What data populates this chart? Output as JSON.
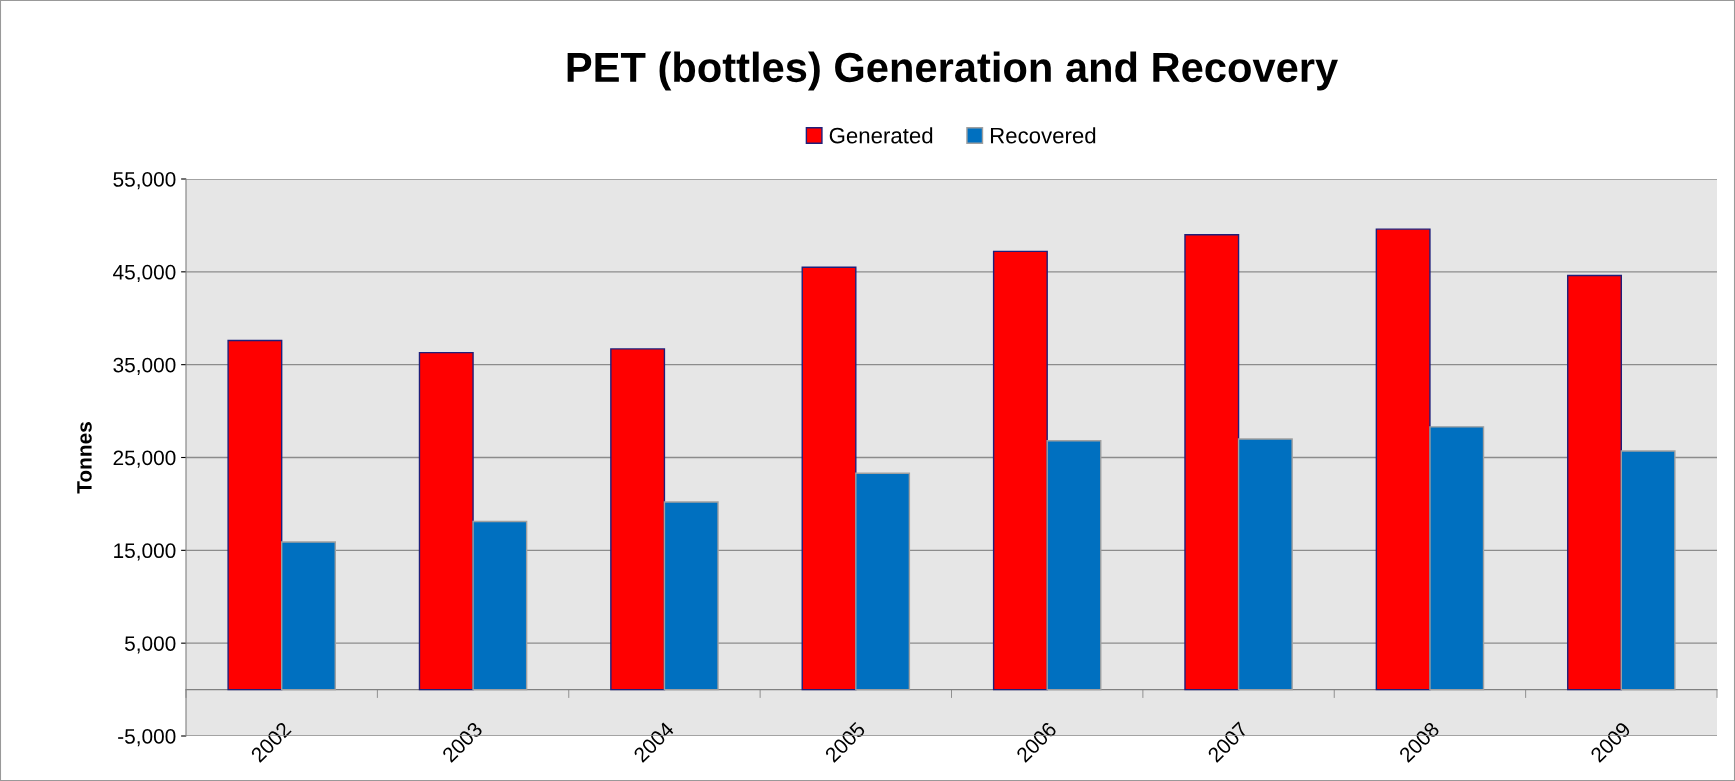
{
  "chart_data": {
    "type": "bar",
    "title": "PET (bottles) Generation and Recovery",
    "ylabel": "Tonnes",
    "categories": [
      "2002",
      "2003",
      "2004",
      "2005",
      "2006",
      "2007",
      "2008",
      "2009"
    ],
    "series": [
      {
        "name": "Generated",
        "color": "#ff0000",
        "values": [
          37600,
          36300,
          36700,
          45500,
          47200,
          49000,
          49600,
          44600
        ]
      },
      {
        "name": "Recovered",
        "color": "#0070c0",
        "values": [
          15900,
          18100,
          20200,
          23300,
          26800,
          27000,
          28300,
          25700
        ]
      }
    ],
    "ylim": [
      -5000,
      55000
    ],
    "yticks": [
      {
        "value": -5000,
        "label": "-5,000"
      },
      {
        "value": 5000,
        "label": "5,000"
      },
      {
        "value": 15000,
        "label": "15,000"
      },
      {
        "value": 25000,
        "label": "25,000"
      },
      {
        "value": 35000,
        "label": "35,000"
      },
      {
        "value": 45000,
        "label": "45,000"
      },
      {
        "value": 55000,
        "label": "55,000"
      }
    ],
    "grid": "y",
    "legend": "top"
  }
}
